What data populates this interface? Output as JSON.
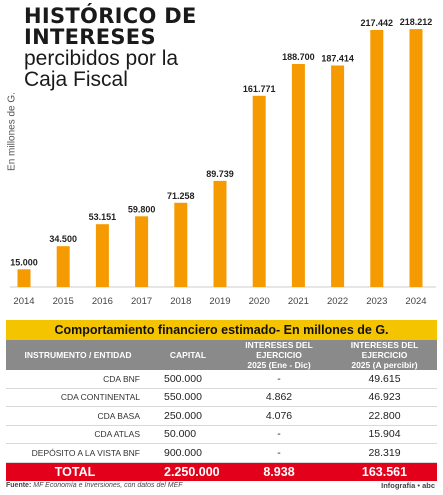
{
  "title": {
    "line1": "HISTÓRICO DE",
    "line2": "INTERESES",
    "line3": "percibidos por la",
    "line4": "Caja Fiscal"
  },
  "chart_data": {
    "type": "bar",
    "title": "HISTÓRICO DE INTERESES percibidos por la Caja Fiscal",
    "ylabel": "En millones de G.",
    "xlabel": "",
    "categories": [
      "2014",
      "2015",
      "2016",
      "2017",
      "2018",
      "2019",
      "2020",
      "2021",
      "2022",
      "2023",
      "2024"
    ],
    "values": [
      15000,
      34500,
      53151,
      59800,
      71258,
      89739,
      161771,
      188700,
      187414,
      217442,
      218212
    ],
    "value_labels": [
      "15.000",
      "34.500",
      "53.151",
      "59.800",
      "71.258",
      "89.739",
      "161.771",
      "188.700",
      "187.414",
      "217.442",
      "218.212"
    ],
    "ylim": [
      0,
      220000
    ],
    "grid": false,
    "bar_color": "#f59a00"
  },
  "table": {
    "title": "Comportamiento financiero estimado- En millones de G.",
    "headers": {
      "instrument": "INSTRUMENTO / ENTIDAD",
      "capital": "CAPITAL",
      "interest_line1": "INTERESES DEL EJERCICIO",
      "interest_line2": "2025 (Ene - Dic)",
      "pending_line1": "INTERESES DEL EJERCICIO",
      "pending_line2": "2025 (A percibir)"
    },
    "rows": [
      {
        "instrument": "CDA BNF",
        "capital": "500.000",
        "interest": "-",
        "pending": "49.615"
      },
      {
        "instrument": "CDA CONTINENTAL",
        "capital": "550.000",
        "interest": "4.862",
        "pending": "46.923"
      },
      {
        "instrument": "CDA BASA",
        "capital": "250.000",
        "interest": "4.076",
        "pending": "22.800"
      },
      {
        "instrument": "CDA ATLAS",
        "capital": "50.000",
        "interest": "-",
        "pending": "15.904"
      },
      {
        "instrument": "DEPÓSITO A LA VISTA BNF",
        "capital": "900.000",
        "interest": "-",
        "pending": "28.319"
      }
    ],
    "total": {
      "label": "TOTAL",
      "capital": "2.250.000",
      "interest": "8.938",
      "pending": "163.561"
    }
  },
  "footer": {
    "source_label": "Fuente:",
    "source_text": "MF Economía e Inversiones, con datos del MEF",
    "credit": "Infografía • abc"
  },
  "colors": {
    "bar": "#f59a00",
    "table_title_bg": "#f5c400",
    "header_bg": "#8a8a8a",
    "total_bg": "#e3001b"
  }
}
